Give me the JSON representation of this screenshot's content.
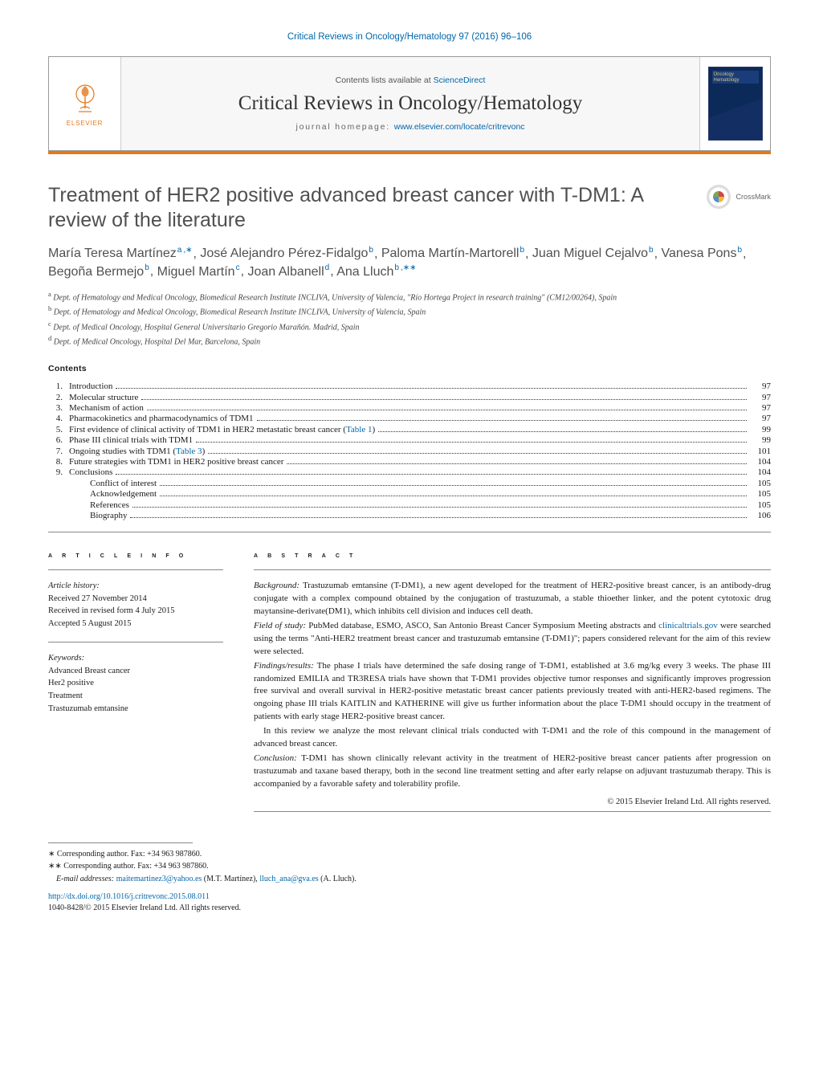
{
  "running_head": "Critical Reviews in Oncology/Hematology 97 (2016) 96–106",
  "masthead": {
    "contents_available_prefix": "Contents lists available at ",
    "contents_available_link": "ScienceDirect",
    "journal_name": "Critical Reviews in Oncology/Hematology",
    "homepage_label": "journal homepage: ",
    "homepage_url": "www.elsevier.com/locate/critrevonc",
    "publisher_label": "ELSEVIER",
    "cover_title_line1": "Oncology",
    "cover_title_line2": "Hematology"
  },
  "crossmark_label": "CrossMark",
  "title": "Treatment of HER2 positive advanced breast cancer with T-DM1: A review of the literature",
  "authors": [
    {
      "name": "María Teresa Martínez",
      "aff": "a",
      "corr": "*"
    },
    {
      "name": "José Alejandro Pérez-Fidalgo",
      "aff": "b"
    },
    {
      "name": "Paloma Martín-Martorell",
      "aff": "b"
    },
    {
      "name": "Juan Miguel Cejalvo",
      "aff": "b"
    },
    {
      "name": "Vanesa Pons",
      "aff": "b"
    },
    {
      "name": "Begoña Bermejo",
      "aff": "b"
    },
    {
      "name": "Miguel Martín",
      "aff": "c"
    },
    {
      "name": "Joan Albanell",
      "aff": "d"
    },
    {
      "name": "Ana Lluch",
      "aff": "b",
      "corr": "**"
    }
  ],
  "affiliations": [
    {
      "key": "a",
      "text": "Dept. of Hematology and Medical Oncology, Biomedical Research Institute INCLIVA, University of Valencia, \"Río Hortega Project in research training\" (CM12/00264), Spain"
    },
    {
      "key": "b",
      "text": "Dept. of Hematology and Medical Oncology, Biomedical Research Institute INCLIVA, University of Valencia, Spain"
    },
    {
      "key": "c",
      "text": "Dept. of Medical Oncology, Hospital General Universitario Gregorio Marañón. Madrid, Spain"
    },
    {
      "key": "d",
      "text": "Dept. of Medical Oncology, Hospital Del Mar, Barcelona, Spain"
    }
  ],
  "contents_heading": "Contents",
  "toc": [
    {
      "num": "1.",
      "title": "Introduction",
      "page": "97"
    },
    {
      "num": "2.",
      "title": "Molecular structure",
      "page": "97"
    },
    {
      "num": "3.",
      "title": "Mechanism of action",
      "page": "97"
    },
    {
      "num": "4.",
      "title": "Pharmacokinetics and pharmacodynamics of TDM1",
      "page": "97"
    },
    {
      "num": "5.",
      "title": "First evidence of clinical activity of TDM1 in HER2 metastatic breast cancer (",
      "link": "Table 1",
      "after": ")",
      "page": "99"
    },
    {
      "num": "6.",
      "title": "Phase III clinical trials with TDM1",
      "page": "99"
    },
    {
      "num": "7.",
      "title": "Ongoing studies with TDM1 (",
      "link": "Table 3",
      "after": ")",
      "page": "101"
    },
    {
      "num": "8.",
      "title": "Future strategies with TDM1 in HER2 positive breast cancer",
      "page": "104"
    },
    {
      "num": "9.",
      "title": "Conclusions",
      "page": "104"
    },
    {
      "sub": true,
      "title": "Conflict of interest",
      "page": "105"
    },
    {
      "sub": true,
      "title": "Acknowledgement",
      "page": "105"
    },
    {
      "sub": true,
      "title": "References",
      "page": "105"
    },
    {
      "sub": true,
      "title": "Biography",
      "page": "106"
    }
  ],
  "article_info_head": "a r t i c l e   i n f o",
  "abstract_head": "a b s t r a c t",
  "history_label": "Article history:",
  "history": [
    "Received 27 November 2014",
    "Received in revised form 4 July 2015",
    "Accepted 5 August 2015"
  ],
  "keywords_label": "Keywords:",
  "keywords": [
    "Advanced Breast cancer",
    "Her2 positive",
    "Treatment",
    "Trastuzumab emtansine"
  ],
  "abstract": {
    "background_label": "Background:",
    "background": " Trastuzumab emtansine (T-DM1), a new agent developed for the treatment of HER2-positive breast cancer, is an antibody-drug conjugate with a complex compound obtained by the conjugation of trastuzumab, a stable thioether linker, and the potent cytotoxic drug maytansine-derivate(DM1), which inhibits cell division and induces cell death.",
    "field_label": "Field of study:",
    "field_pre": " PubMed database, ESMO, ASCO, San Antonio Breast Cancer Symposium Meeting abstracts and ",
    "field_link": "clinicaltrials.gov",
    "field_post": " were searched using the terms \"Anti-HER2 treatment breast cancer and trastuzumab emtansine (T-DM1)\"; papers considered relevant for the aim of this review were selected.",
    "findings_label": "Findings/results:",
    "findings": " The phase I trials have determined the safe dosing range of T-DM1, established at 3.6 mg/kg every 3 weeks. The phase III randomized EMILIA and TR3RESA trials have shown that T-DM1 provides objective tumor responses and significantly improves progression free survival and overall survival in HER2-positive metastatic breast cancer patients previously treated with anti-HER2-based regimens. The ongoing phase III trials KAITLIN and KATHERINE will give us further information about the place T-DM1 should occupy in the treatment of patients with early stage HER2-positive breast cancer.",
    "review_line": "In this review we analyze the most relevant clinical trials conducted with T-DM1 and the role of this compound in the management of advanced breast cancer.",
    "conclusion_label": "Conclusion:",
    "conclusion": " T-DM1 has shown clinically relevant activity in the treatment of HER2-positive breast cancer patients after progression on trastuzumab and taxane based therapy, both in the second line treatment setting and after early relapse on adjuvant trastuzumab therapy. This is accompanied by a favorable safety and tolerability profile."
  },
  "copyright": "© 2015 Elsevier Ireland Ltd. All rights reserved.",
  "footnotes": {
    "corr1": "∗ Corresponding author. Fax: +34 963 987860.",
    "corr2": "∗∗ Corresponding author. Fax: +34 963 987860.",
    "email_label": "E-mail addresses: ",
    "email1": "maitemartinez3@yahoo.es",
    "email1_person": " (M.T. Martínez), ",
    "email2": "lluch_ana@gva.es",
    "email2_person": " (A. Lluch)."
  },
  "doi": {
    "url": "http://dx.doi.org/10.1016/j.critrevonc.2015.08.011",
    "issn_line": "1040-8428/© 2015 Elsevier Ireland Ltd. All rights reserved."
  },
  "colors": {
    "link": "#0066aa",
    "accent": "#e67817",
    "text": "#1a1a1a",
    "title_gray": "#505050",
    "rule": "#888888"
  },
  "typography": {
    "body_family": "Georgia, 'Times New Roman', serif",
    "sans_family": "Arial, sans-serif",
    "title_pt": 25,
    "author_pt": 16,
    "body_pt": 11,
    "small_pt": 10
  }
}
